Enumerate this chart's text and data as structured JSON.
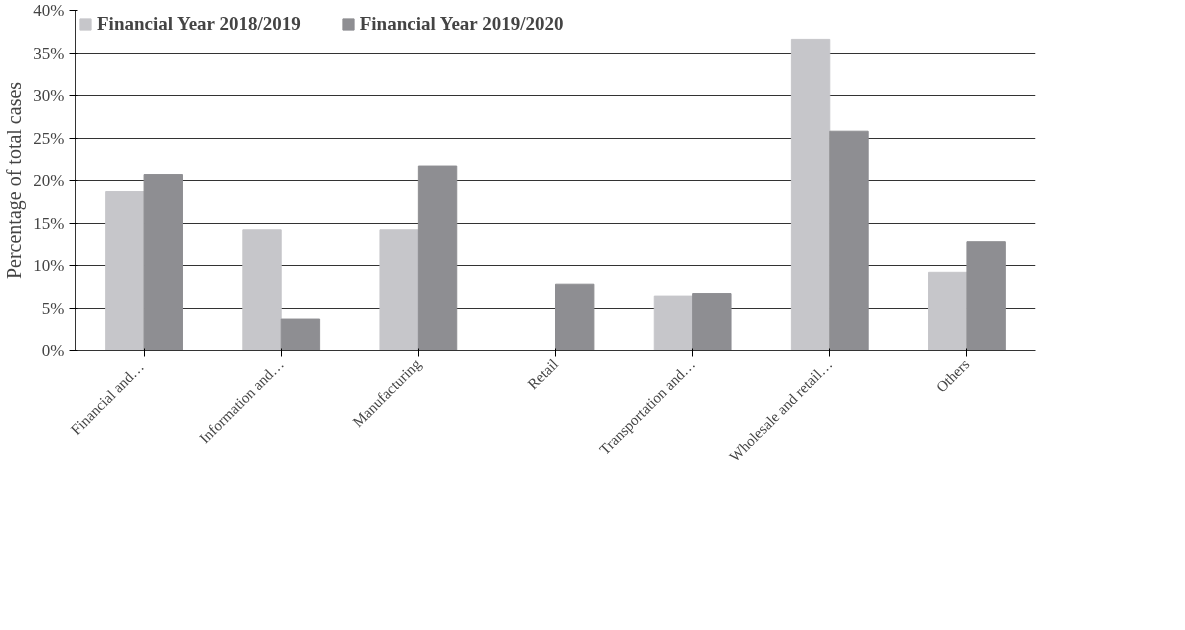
{
  "chart_data": {
    "type": "bar",
    "ylabel": "Percentage of total cases",
    "categories": [
      "Financial  and…",
      "Information and…",
      "Manufacturing",
      "Retail",
      "Transportation and…",
      "Wholesale and retail…",
      "Others"
    ],
    "series": [
      {
        "name": "Financial Year 2018/2019",
        "color": "#c6c6ca",
        "values": [
          18.7,
          14.2,
          14.2,
          0,
          6.4,
          36.6,
          9.2
        ]
      },
      {
        "name": "Financial Year 2019/2020",
        "color": "#8e8e92",
        "values": [
          20.7,
          3.7,
          21.7,
          7.8,
          6.7,
          25.8,
          12.8
        ]
      }
    ],
    "ylim": [
      0,
      40
    ],
    "yticks": [
      {
        "value": 0,
        "label": "0%"
      },
      {
        "value": 5,
        "label": "5%"
      },
      {
        "value": 10,
        "label": "10%"
      },
      {
        "value": 15,
        "label": "15%"
      },
      {
        "value": 20,
        "label": "20%"
      },
      {
        "value": 25,
        "label": "25%"
      },
      {
        "value": 30,
        "label": "30%"
      },
      {
        "value": 35,
        "label": "35%"
      },
      {
        "value": 40,
        "label": "40%"
      }
    ],
    "grid": "y",
    "legend": "top"
  }
}
